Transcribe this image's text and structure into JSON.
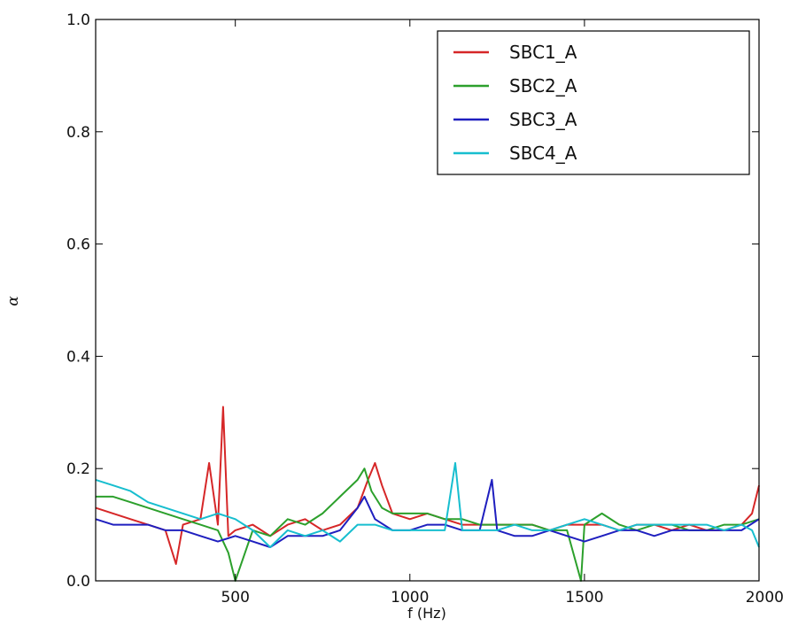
{
  "chart_data": {
    "type": "line",
    "title": "",
    "xlabel": "f (Hz)",
    "ylabel": "α",
    "xlim": [
      100,
      2000
    ],
    "ylim": [
      0.0,
      1.0
    ],
    "xticks": [
      500,
      1000,
      1500,
      2000
    ],
    "xtick_labels": [
      "500",
      "1000",
      "1500",
      "2000"
    ],
    "yticks": [
      0.0,
      0.2,
      0.4,
      0.6,
      0.8,
      1.0
    ],
    "ytick_labels": [
      "0.0",
      "0.2",
      "0.4",
      "0.6",
      "0.8",
      "1.0"
    ],
    "grid": false,
    "legend": "top-right",
    "series": [
      {
        "name": "SBC1_A",
        "color": "#d62728",
        "x": [
          100,
          150,
          200,
          250,
          300,
          330,
          350,
          400,
          425,
          450,
          465,
          480,
          500,
          550,
          600,
          650,
          700,
          750,
          800,
          850,
          880,
          900,
          920,
          950,
          1000,
          1050,
          1100,
          1150,
          1200,
          1250,
          1300,
          1350,
          1400,
          1450,
          1500,
          1550,
          1600,
          1650,
          1700,
          1750,
          1800,
          1850,
          1900,
          1950,
          1980,
          2000
        ],
        "y": [
          0.13,
          0.12,
          0.11,
          0.1,
          0.09,
          0.03,
          0.1,
          0.11,
          0.21,
          0.1,
          0.31,
          0.08,
          0.09,
          0.1,
          0.08,
          0.1,
          0.11,
          0.09,
          0.1,
          0.13,
          0.18,
          0.21,
          0.17,
          0.12,
          0.11,
          0.12,
          0.11,
          0.1,
          0.1,
          0.1,
          0.1,
          0.1,
          0.09,
          0.1,
          0.1,
          0.1,
          0.09,
          0.1,
          0.1,
          0.09,
          0.1,
          0.09,
          0.09,
          0.1,
          0.12,
          0.17
        ]
      },
      {
        "name": "SBC2_A",
        "color": "#2ca02c",
        "x": [
          100,
          150,
          200,
          250,
          300,
          350,
          400,
          450,
          480,
          500,
          550,
          600,
          650,
          700,
          750,
          800,
          850,
          870,
          890,
          920,
          950,
          1000,
          1050,
          1100,
          1150,
          1200,
          1250,
          1300,
          1350,
          1400,
          1450,
          1490,
          1500,
          1550,
          1600,
          1650,
          1700,
          1750,
          1800,
          1850,
          1900,
          1950,
          2000
        ],
        "y": [
          0.15,
          0.15,
          0.14,
          0.13,
          0.12,
          0.11,
          0.1,
          0.09,
          0.05,
          0.0,
          0.09,
          0.08,
          0.11,
          0.1,
          0.12,
          0.15,
          0.18,
          0.2,
          0.16,
          0.13,
          0.12,
          0.12,
          0.12,
          0.11,
          0.11,
          0.1,
          0.1,
          0.1,
          0.1,
          0.09,
          0.09,
          0.0,
          0.1,
          0.12,
          0.1,
          0.09,
          0.1,
          0.1,
          0.09,
          0.09,
          0.1,
          0.1,
          0.11
        ]
      },
      {
        "name": "SBC3_A",
        "color": "#1f1fbf",
        "x": [
          100,
          150,
          200,
          250,
          300,
          350,
          400,
          450,
          500,
          550,
          600,
          650,
          700,
          750,
          800,
          850,
          870,
          900,
          950,
          1000,
          1050,
          1100,
          1150,
          1200,
          1235,
          1250,
          1300,
          1350,
          1400,
          1450,
          1500,
          1550,
          1600,
          1650,
          1700,
          1750,
          1800,
          1850,
          1900,
          1950,
          2000
        ],
        "y": [
          0.11,
          0.1,
          0.1,
          0.1,
          0.09,
          0.09,
          0.08,
          0.07,
          0.08,
          0.07,
          0.06,
          0.08,
          0.08,
          0.08,
          0.09,
          0.13,
          0.15,
          0.11,
          0.09,
          0.09,
          0.1,
          0.1,
          0.09,
          0.09,
          0.18,
          0.09,
          0.08,
          0.08,
          0.09,
          0.08,
          0.07,
          0.08,
          0.09,
          0.09,
          0.08,
          0.09,
          0.09,
          0.09,
          0.09,
          0.09,
          0.11
        ]
      },
      {
        "name": "SBC4_A",
        "color": "#17becf",
        "x": [
          100,
          150,
          200,
          250,
          300,
          350,
          400,
          450,
          500,
          550,
          600,
          650,
          700,
          750,
          800,
          850,
          900,
          950,
          1000,
          1050,
          1100,
          1130,
          1150,
          1200,
          1250,
          1300,
          1350,
          1400,
          1450,
          1500,
          1550,
          1600,
          1650,
          1700,
          1750,
          1800,
          1850,
          1900,
          1950,
          1980,
          2000
        ],
        "y": [
          0.18,
          0.17,
          0.16,
          0.14,
          0.13,
          0.12,
          0.11,
          0.12,
          0.11,
          0.09,
          0.06,
          0.09,
          0.08,
          0.09,
          0.07,
          0.1,
          0.1,
          0.09,
          0.09,
          0.09,
          0.09,
          0.21,
          0.09,
          0.09,
          0.09,
          0.1,
          0.09,
          0.09,
          0.1,
          0.11,
          0.1,
          0.09,
          0.1,
          0.1,
          0.1,
          0.1,
          0.1,
          0.09,
          0.1,
          0.09,
          0.06
        ]
      }
    ]
  }
}
